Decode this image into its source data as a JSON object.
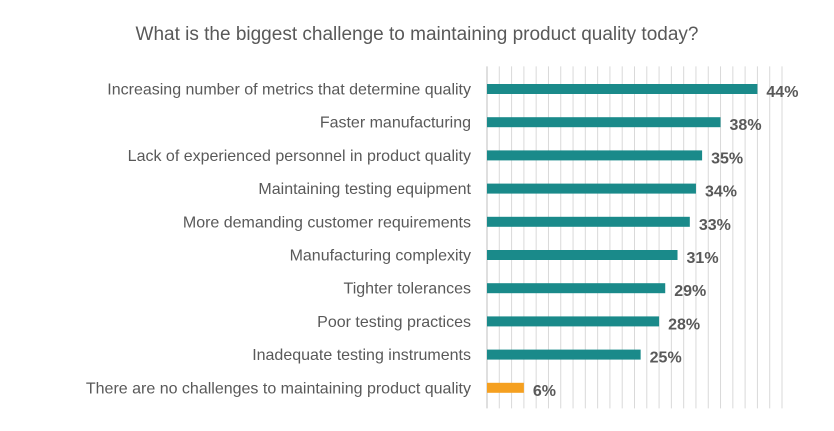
{
  "chart_data": {
    "type": "bar",
    "orientation": "horizontal",
    "title": "What is the biggest challenge to maintaining product quality today?",
    "categories": [
      "Increasing number of metrics that determine quality",
      "Faster manufacturing",
      "Lack of experienced personnel in product quality",
      "Maintaining testing equipment",
      "More demanding customer requirements",
      "Manufacturing complexity",
      "Tighter tolerances",
      "Poor testing practices",
      "Inadequate testing instruments",
      "There are no challenges to maintaining product quality"
    ],
    "values": [
      44,
      38,
      35,
      34,
      33,
      31,
      29,
      28,
      25,
      6
    ],
    "value_labels": [
      "44%",
      "38%",
      "35%",
      "34%",
      "33%",
      "31%",
      "29%",
      "28%",
      "25%",
      "6%"
    ],
    "bar_colors": [
      "#1a8a8a",
      "#1a8a8a",
      "#1a8a8a",
      "#1a8a8a",
      "#1a8a8a",
      "#1a8a8a",
      "#1a8a8a",
      "#1a8a8a",
      "#1a8a8a",
      "#f5a020"
    ],
    "xlim": [
      0,
      48
    ],
    "grid": true,
    "legend": "none"
  }
}
